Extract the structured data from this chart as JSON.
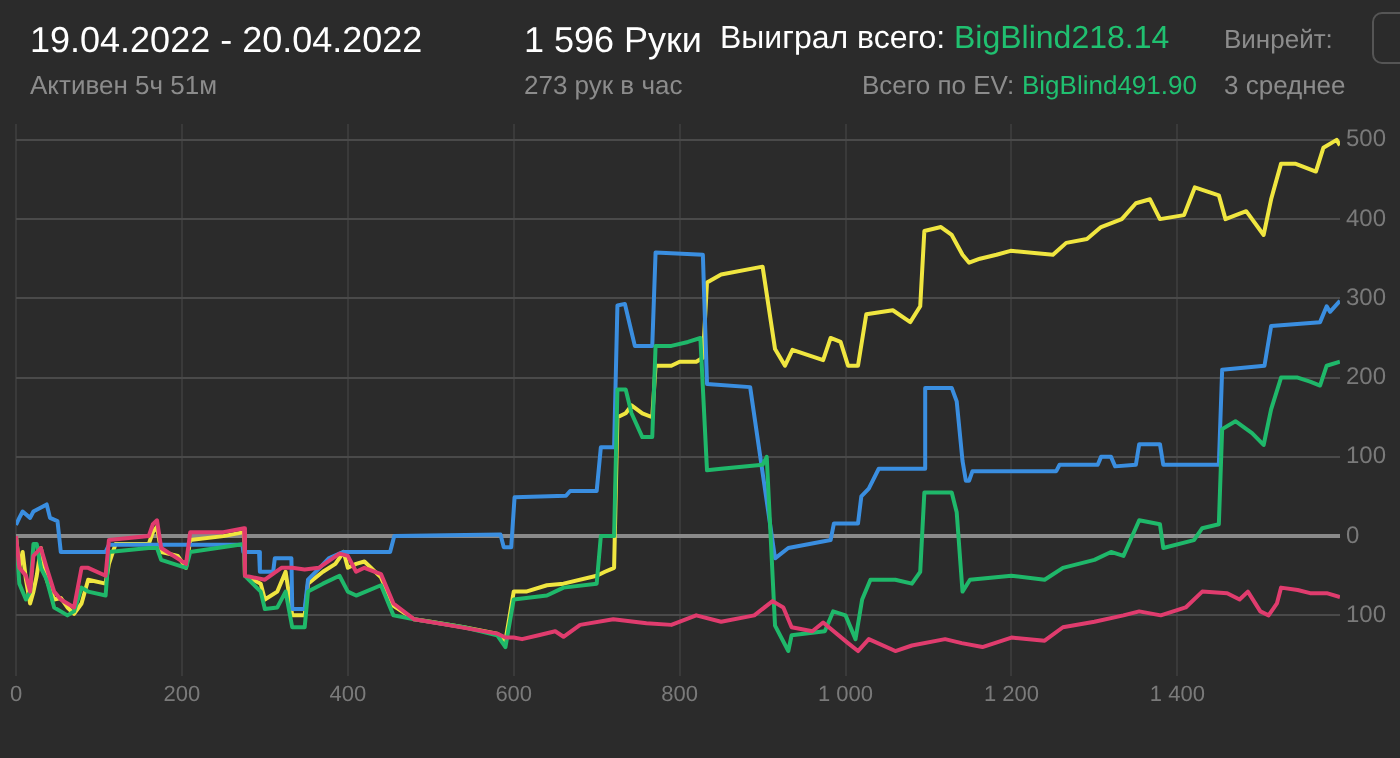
{
  "chart_data": {
    "type": "line",
    "title": "19.04.2022 - 20.04.2022",
    "subtitle": "Активен 5ч 51м",
    "annotations": [
      "1 596 Руки",
      "273 рук в час",
      "Выиграл всего:",
      "BigBlind218.14",
      "Всего по EV:",
      "BigBlind491.90",
      "Винрейт:",
      "3 среднее"
    ],
    "xlim": [
      0,
      1596
    ],
    "xticks": [
      0,
      200,
      400,
      600,
      800,
      {
        "value": 1000,
        "label": "1 000"
      },
      {
        "value": 1200,
        "label": "1 200"
      },
      {
        "value": 1400,
        "label": "1 400"
      }
    ],
    "ylim": [
      -176,
      520
    ],
    "yticks": [
      {
        "value": -100,
        "label": "100"
      },
      0,
      100,
      200,
      300,
      400,
      500
    ],
    "grid": true,
    "legend": false,
    "marker": "none",
    "line_style": "solid",
    "series": [
      {
        "color": "#e03c6e",
        "x": [
          0,
          4,
          12,
          17,
          21,
          30,
          37,
          46,
          54,
          62,
          70,
          79,
          87,
          108,
          112,
          160,
          165,
          170,
          175,
          205,
          210,
          250,
          275,
          276,
          300,
          320,
          333,
          348,
          365,
          390,
          400,
          410,
          420,
          440,
          455,
          480,
          520,
          580,
          590,
          600,
          610,
          630,
          650,
          660,
          680,
          720,
          760,
          790,
          820,
          850,
          890,
          912,
          925,
          935,
          960,
          973,
          1003,
          1015,
          1028,
          1060,
          1080,
          1120,
          1140,
          1165,
          1200,
          1240,
          1262,
          1300,
          1335,
          1354,
          1380,
          1410,
          1430,
          1460,
          1475,
          1485,
          1500,
          1510,
          1520,
          1525,
          1545,
          1560,
          1580,
          1596
        ],
        "values": [
          0,
          -40,
          -50,
          -70,
          -25,
          -15,
          -40,
          -70,
          -80,
          -85,
          -90,
          -40,
          -40,
          -50,
          -5,
          0,
          15,
          20,
          -15,
          -35,
          5,
          5,
          10,
          -50,
          -55,
          -40,
          -40,
          -42,
          -40,
          -22,
          -25,
          -45,
          -40,
          -48,
          -85,
          -105,
          -112,
          -123,
          -128,
          -128,
          -130,
          -125,
          -120,
          -127,
          -112,
          -105,
          -110,
          -112,
          -100,
          -108,
          -100,
          -82,
          -90,
          -115,
          -120,
          -109,
          -135,
          -145,
          -130,
          -145,
          -138,
          -130,
          -135,
          -140,
          -128,
          -132,
          -115,
          -108,
          -100,
          -95,
          -100,
          -90,
          -70,
          -72,
          -80,
          -70,
          -95,
          -100,
          -85,
          -65,
          -68,
          -72,
          -72,
          -77
        ]
      },
      {
        "color": "#1fb86a",
        "x": [
          0,
          4,
          12,
          17,
          21,
          25,
          30,
          37,
          46,
          54,
          62,
          70,
          79,
          87,
          108,
          112,
          160,
          170,
          175,
          205,
          210,
          275,
          276,
          295,
          300,
          315,
          325,
          333,
          348,
          352,
          370,
          390,
          400,
          410,
          440,
          455,
          480,
          540,
          580,
          590,
          600,
          640,
          660,
          700,
          705,
          721,
          725,
          735,
          742,
          755,
          767,
          771,
          790,
          810,
          825,
          833,
          850,
          900,
          905,
          915,
          931,
          935,
          975,
          985,
          1000,
          1012,
          1020,
          1030,
          1060,
          1080,
          1090,
          1095,
          1128,
          1134,
          1141,
          1150,
          1200,
          1240,
          1262,
          1300,
          1320,
          1335,
          1354,
          1379,
          1383,
          1420,
          1430,
          1450,
          1454,
          1470,
          1490,
          1504,
          1513,
          1525,
          1545,
          1560,
          1572,
          1580,
          1596
        ],
        "values": [
          0,
          -60,
          -80,
          -70,
          -10,
          -10,
          -40,
          -55,
          -90,
          -95,
          -100,
          -95,
          -65,
          -70,
          -75,
          -20,
          -15,
          -15,
          -30,
          -40,
          -20,
          -10,
          -50,
          -70,
          -92,
          -90,
          -70,
          -115,
          -115,
          -70,
          -60,
          -50,
          -70,
          -75,
          -62,
          -100,
          -105,
          -115,
          -125,
          -140,
          -80,
          -75,
          -65,
          -60,
          0,
          0,
          185,
          185,
          155,
          125,
          125,
          240,
          240,
          245,
          250,
          83,
          85,
          90,
          100,
          -113,
          -145,
          -125,
          -120,
          -95,
          -100,
          -130,
          -80,
          -55,
          -55,
          -60,
          -45,
          55,
          55,
          30,
          -70,
          -55,
          -50,
          -55,
          -40,
          -30,
          -20,
          -25,
          20,
          15,
          -15,
          -5,
          10,
          15,
          135,
          145,
          130,
          115,
          160,
          200,
          200,
          195,
          190,
          215,
          220
        ]
      },
      {
        "color": "#3a8ee0",
        "x": [
          0,
          4,
          8,
          17,
          21,
          37,
          41,
          50,
          54,
          108,
          112,
          273,
          274,
          293,
          294,
          310,
          312,
          332,
          333,
          348,
          352,
          369,
          377,
          394,
          451,
          456,
          584,
          588,
          597,
          601,
          663,
          668,
          700,
          705,
          721,
          725,
          734,
          741,
          746,
          767,
          771,
          828,
          833,
          885,
          915,
          931,
          982,
          986,
          1015,
          1019,
          1028,
          1040,
          1095,
          1096,
          1128,
          1134,
          1141,
          1145,
          1149,
          1153,
          1254,
          1258,
          1304,
          1308,
          1320,
          1325,
          1350,
          1354,
          1379,
          1383,
          1450,
          1454,
          1505,
          1513,
          1572,
          1580,
          1584,
          1596
        ],
        "values": [
          14,
          23,
          31,
          23,
          31,
          40,
          23,
          19,
          -20,
          -20,
          -11,
          -11,
          -20,
          -20,
          -45,
          -45,
          -28,
          -28,
          -92,
          -92,
          -55,
          -37,
          -28,
          -20,
          -20,
          0,
          2,
          -14,
          -14,
          49,
          51,
          57,
          57,
          112,
          112,
          291,
          293,
          262,
          240,
          240,
          358,
          355,
          192,
          188,
          -28,
          -15,
          -5,
          16,
          16,
          50,
          60,
          85,
          85,
          187,
          187,
          170,
          95,
          70,
          70,
          82,
          82,
          90,
          90,
          100,
          100,
          88,
          90,
          116,
          116,
          90,
          90,
          210,
          215,
          265,
          270,
          290,
          283,
          297
        ]
      },
      {
        "color": "#f0e640",
        "x": [
          0,
          4,
          8,
          12,
          17,
          21,
          25,
          30,
          37,
          46,
          54,
          62,
          70,
          79,
          87,
          108,
          112,
          120,
          160,
          165,
          170,
          175,
          195,
          205,
          210,
          250,
          275,
          276,
          295,
          300,
          315,
          325,
          333,
          348,
          352,
          370,
          385,
          395,
          400,
          410,
          420,
          440,
          455,
          480,
          500,
          540,
          580,
          590,
          600,
          615,
          640,
          660,
          700,
          710,
          721,
          725,
          735,
          742,
          755,
          767,
          771,
          790,
          800,
          820,
          828,
          833,
          850,
          900,
          915,
          927,
          936,
          973,
          982,
          994,
          1003,
          1015,
          1025,
          1057,
          1078,
          1090,
          1095,
          1115,
          1128,
          1141,
          1149,
          1162,
          1182,
          1199,
          1250,
          1266,
          1291,
          1308,
          1333,
          1350,
          1367,
          1379,
          1408,
          1421,
          1450,
          1458,
          1483,
          1504,
          1513,
          1525,
          1542,
          1567,
          1576,
          1592,
          1596
        ],
        "values": [
          0,
          -40,
          -20,
          -55,
          -85,
          -70,
          -50,
          -15,
          -55,
          -80,
          -78,
          -90,
          -98,
          -85,
          -55,
          -60,
          -35,
          -10,
          -10,
          5,
          12,
          -20,
          -25,
          -40,
          -5,
          0,
          5,
          -50,
          -60,
          -80,
          -70,
          -45,
          -100,
          -100,
          -60,
          -45,
          -35,
          -20,
          -40,
          -35,
          -32,
          -52,
          -88,
          -105,
          -108,
          -115,
          -123,
          -132,
          -70,
          -70,
          -62,
          -60,
          -50,
          -45,
          -40,
          150,
          155,
          165,
          155,
          150,
          215,
          215,
          220,
          220,
          225,
          320,
          330,
          340,
          236,
          215,
          235,
          222,
          250,
          245,
          215,
          215,
          280,
          285,
          270,
          290,
          385,
          390,
          380,
          355,
          345,
          350,
          355,
          360,
          355,
          370,
          375,
          390,
          400,
          420,
          425,
          400,
          405,
          440,
          430,
          400,
          410,
          380,
          425,
          470,
          470,
          460,
          490,
          500,
          493
        ]
      }
    ]
  }
}
